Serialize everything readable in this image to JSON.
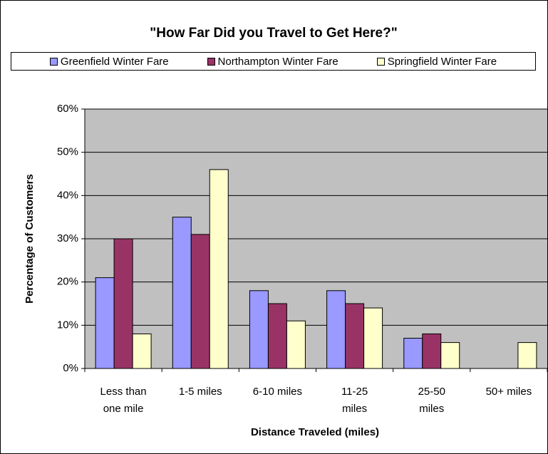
{
  "chart_data": {
    "type": "bar",
    "title": "\"How Far Did you Travel to Get Here?\"",
    "x_label": "Distance Traveled (miles)",
    "y_label": "Percentage of Customers",
    "categories": [
      "Less than one mile",
      "1-5 miles",
      "6-10 miles",
      "11-25 miles",
      "25-50 miles",
      "50+ miles"
    ],
    "series": [
      {
        "name": "Greenfield Winter Fare",
        "color": "#9999ff",
        "values": [
          21,
          35,
          18,
          18,
          7,
          0
        ]
      },
      {
        "name": "Northampton Winter Fare",
        "color": "#993366",
        "values": [
          30,
          31,
          15,
          15,
          8,
          0
        ]
      },
      {
        "name": "Springfield Winter Fare",
        "color": "#ffffcc",
        "values": [
          8,
          46,
          11,
          14,
          6,
          6
        ]
      }
    ],
    "ylim": [
      0,
      60
    ],
    "yticks": [
      {
        "value": 0,
        "label": "0%"
      },
      {
        "value": 10,
        "label": "10%"
      },
      {
        "value": 20,
        "label": "20%"
      },
      {
        "value": 30,
        "label": "30%"
      },
      {
        "value": 40,
        "label": "40%"
      },
      {
        "value": 50,
        "label": "50%"
      },
      {
        "value": 60,
        "label": "60%"
      }
    ],
    "grid": true,
    "plot_background": "#c0c0c0",
    "legend": "top"
  }
}
